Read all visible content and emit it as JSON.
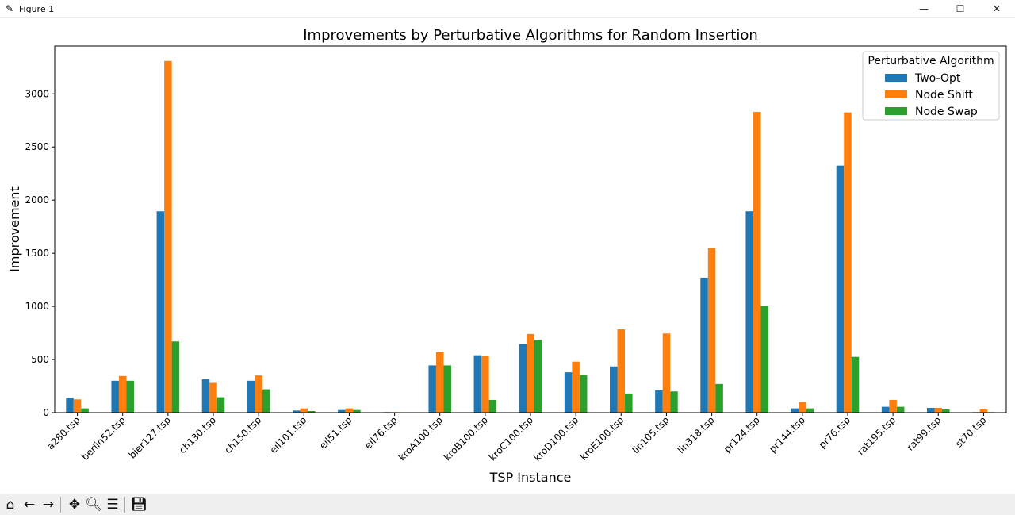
{
  "window": {
    "title": "Figure 1",
    "minimize_glyph": "—",
    "maximize_glyph": "☐",
    "close_glyph": "✕"
  },
  "toolbar": {
    "icons": [
      "home-icon",
      "back-icon",
      "forward-icon",
      "pan-icon",
      "zoom-icon",
      "configure-subplots-icon",
      "save-icon"
    ]
  },
  "chart_data": {
    "type": "bar",
    "title": "Improvements by Perturbative Algorithms for Random Insertion",
    "xlabel": "TSP Instance",
    "ylabel": "Improvement",
    "ylim": [
      0,
      3450
    ],
    "yticks": [
      0,
      500,
      1000,
      1500,
      2000,
      2500,
      3000
    ],
    "grid": false,
    "legend": {
      "title": "Perturbative Algorithm",
      "placement": "top-right"
    },
    "categories": [
      "a280.tsp",
      "berlin52.tsp",
      "bier127.tsp",
      "ch130.tsp",
      "ch150.tsp",
      "eil101.tsp",
      "eil51.tsp",
      "eil76.tsp",
      "kroA100.tsp",
      "kroB100.tsp",
      "kroC100.tsp",
      "kroD100.tsp",
      "kroE100.tsp",
      "lin105.tsp",
      "lin318.tsp",
      "pr124.tsp",
      "pr144.tsp",
      "pr76.tsp",
      "rat195.tsp",
      "rat99.tsp",
      "st70.tsp"
    ],
    "series": [
      {
        "name": "Two-Opt",
        "color": "#1f77b4",
        "values": [
          140,
          300,
          1895,
          315,
          300,
          20,
          25,
          5,
          445,
          540,
          645,
          380,
          435,
          210,
          1270,
          1895,
          40,
          2325,
          55,
          45,
          5
        ]
      },
      {
        "name": "Node Shift",
        "color": "#ff7f0e",
        "values": [
          125,
          345,
          3310,
          280,
          350,
          40,
          40,
          5,
          570,
          535,
          740,
          480,
          785,
          745,
          1550,
          2830,
          100,
          2825,
          120,
          45,
          30
        ]
      },
      {
        "name": "Node Swap",
        "color": "#2ca02c",
        "values": [
          40,
          300,
          670,
          145,
          220,
          15,
          25,
          0,
          445,
          120,
          685,
          355,
          180,
          200,
          270,
          1005,
          40,
          525,
          55,
          30,
          5
        ]
      }
    ]
  }
}
